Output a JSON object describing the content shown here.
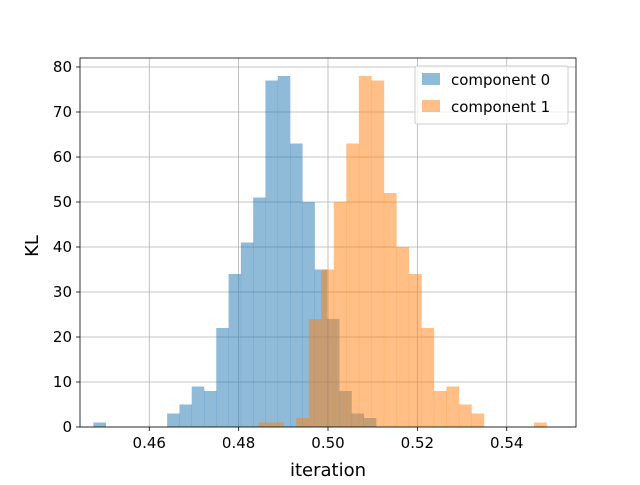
{
  "chart_data": {
    "type": "bar",
    "subtype": "overlapping-histogram",
    "title": "",
    "xlabel": "iteration",
    "ylabel": "KL",
    "xlim": [
      0.4445,
      0.5555
    ],
    "ylim": [
      0,
      82
    ],
    "xticks": [
      0.46,
      0.48,
      0.5,
      0.52,
      0.54
    ],
    "xtick_labels": [
      "0.46",
      "0.48",
      "0.50",
      "0.52",
      "0.54"
    ],
    "yticks": [
      0,
      10,
      20,
      30,
      40,
      50,
      60,
      70,
      80
    ],
    "ytick_labels": [
      "0",
      "10",
      "20",
      "30",
      "40",
      "50",
      "60",
      "70",
      "80"
    ],
    "grid": true,
    "legend_position": "top-right",
    "series": [
      {
        "name": "component 0",
        "color": "#1f77b4",
        "alpha": 0.5,
        "bin_start": 0.4475,
        "bin_width": 0.00275,
        "counts": [
          1,
          0,
          0,
          0,
          0,
          0,
          3,
          5,
          9,
          8,
          22,
          34,
          41,
          51,
          77,
          78,
          63,
          50,
          35,
          24,
          8,
          3,
          2
        ]
      },
      {
        "name": "component 1",
        "color": "#ff7f0e",
        "alpha": 0.5,
        "bin_start": 0.4845,
        "bin_width": 0.0028,
        "counts": [
          1,
          1,
          0,
          2,
          24,
          35,
          50,
          63,
          78,
          77,
          52,
          40,
          34,
          22,
          8,
          9,
          5,
          3,
          0,
          0,
          0,
          0,
          1
        ]
      }
    ]
  }
}
